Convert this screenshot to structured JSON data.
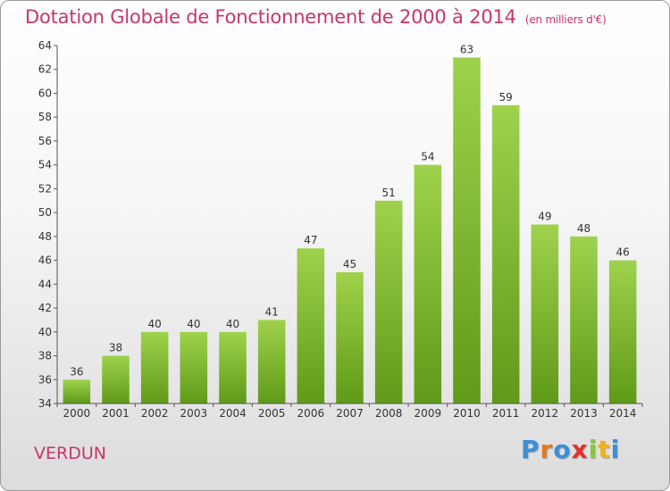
{
  "header": {
    "title": "Dotation Globale de Fonctionnement de 2000 à 2014",
    "unit": "(en milliers d'€)"
  },
  "footer": {
    "place": "VERDUN",
    "logo": {
      "letters": [
        {
          "ch": "P",
          "color": "#3a8fd6"
        },
        {
          "ch": "r",
          "color": "#e07a1f"
        },
        {
          "ch": "o",
          "color": "#3a8fd6"
        },
        {
          "ch": "x",
          "color": "#e0332e"
        },
        {
          "ch": "i",
          "color": "#8cc63f"
        },
        {
          "ch": "t",
          "color": "#f0b21a"
        },
        {
          "ch": "i",
          "color": "#3a8fd6"
        }
      ]
    }
  },
  "chart_data": {
    "type": "bar",
    "title": "Dotation Globale de Fonctionnement de 2000 à 2014",
    "categories": [
      "2000",
      "2001",
      "2002",
      "2003",
      "2004",
      "2005",
      "2006",
      "2007",
      "2008",
      "2009",
      "2010",
      "2011",
      "2012",
      "2013",
      "2014"
    ],
    "values": [
      36,
      38,
      40,
      40,
      40,
      41,
      47,
      45,
      51,
      54,
      63,
      59,
      49,
      48,
      46
    ],
    "ylim": [
      34,
      64
    ],
    "yticks": [
      34,
      36,
      38,
      40,
      42,
      44,
      46,
      48,
      50,
      52,
      54,
      56,
      58,
      60,
      62,
      64
    ],
    "grid": false,
    "bar_color_top": "#9fd24c",
    "bar_color_bottom": "#5f9a18",
    "axis_color": "#555555"
  }
}
